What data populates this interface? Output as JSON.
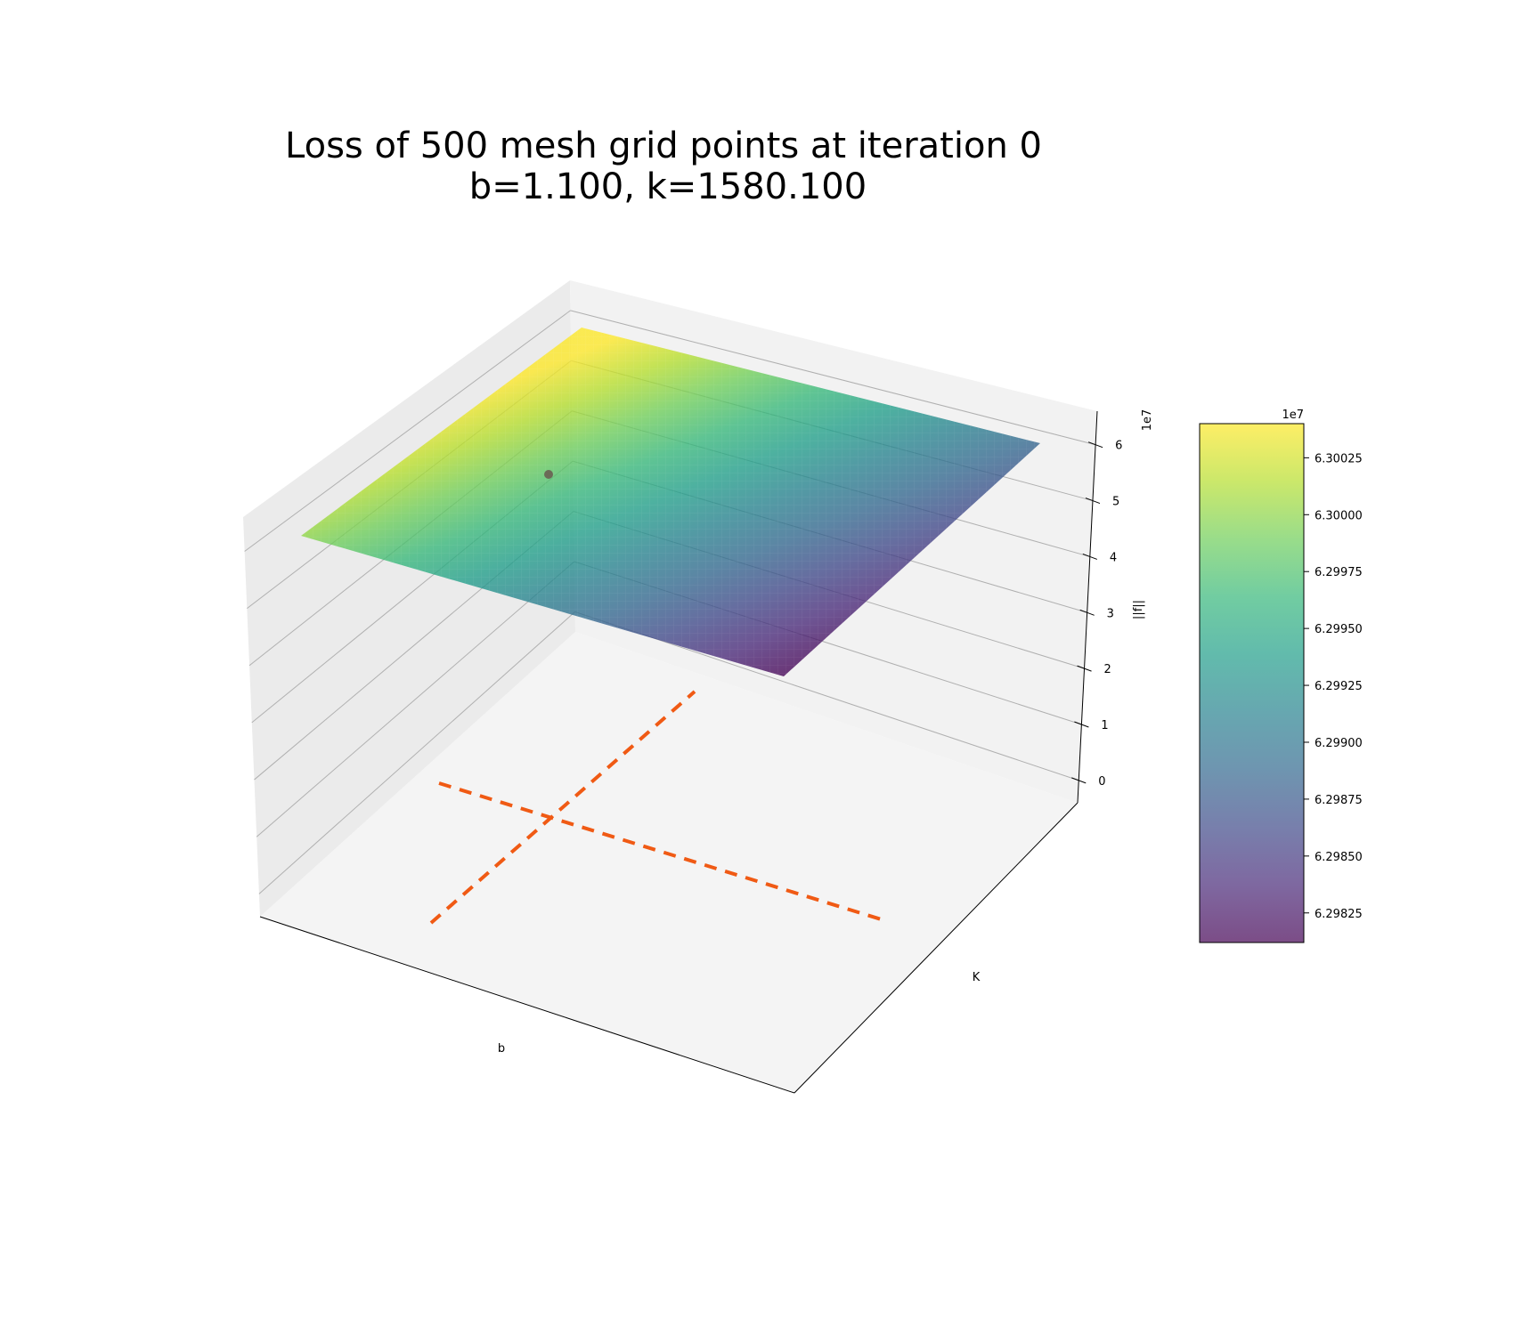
{
  "chart_data": {
    "type": "surface3d",
    "title_lines": [
      "Loss of 500 mesh grid points at iteration 0",
      "b=1.100, k=1580.100"
    ],
    "xlabel": "b",
    "ylabel": "K",
    "zlabel": "||f||",
    "z_axis": {
      "offset_label": "1e7",
      "ticks": [
        0,
        1,
        2,
        3,
        4,
        5,
        6
      ],
      "tick_labels": [
        "0",
        "1",
        "2",
        "3",
        "4",
        "5",
        "6"
      ]
    },
    "surface": {
      "colormap": "viridis",
      "alpha": 0.7,
      "z_min": 62981200,
      "z_max": 63004000
    },
    "current_point": {
      "b": 1.1,
      "k": 1580.1,
      "color": "#6b6b57"
    },
    "dashed_lines_color": "#f05a14",
    "colorbar": {
      "offset_label": "1e7",
      "range": [
        6.29812,
        6.3004
      ],
      "ticks": [
        6.29825,
        6.2985,
        6.29875,
        6.299,
        6.29925,
        6.2995,
        6.29975,
        6.3,
        6.30025
      ],
      "tick_labels": [
        "6.29825",
        "6.29850",
        "6.29875",
        "6.29900",
        "6.29925",
        "6.29950",
        "6.29975",
        "6.30000",
        "6.30025"
      ]
    },
    "grid": true
  }
}
